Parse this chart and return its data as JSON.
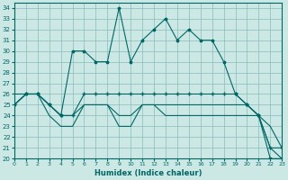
{
  "xlabel": "Humidex (Indice chaleur)",
  "background_color": "#cce8e4",
  "grid_color": "#88bbbb",
  "line_color": "#006666",
  "xlim": [
    0,
    23
  ],
  "ylim": [
    20,
    34.5
  ],
  "xticks": [
    0,
    1,
    2,
    3,
    4,
    5,
    6,
    7,
    8,
    9,
    10,
    11,
    12,
    13,
    14,
    15,
    16,
    17,
    18,
    19,
    20,
    21,
    22,
    23
  ],
  "yticks": [
    20,
    21,
    22,
    23,
    24,
    25,
    26,
    27,
    28,
    29,
    30,
    31,
    32,
    33,
    34
  ],
  "line1_x": [
    0,
    1,
    2,
    3,
    4,
    5,
    6,
    7,
    8,
    9,
    10,
    11,
    12,
    13,
    14,
    15,
    16,
    17,
    18,
    19,
    20,
    21,
    22,
    23
  ],
  "line1_y": [
    25,
    26,
    26,
    25,
    24,
    30,
    30,
    29,
    29,
    34,
    29,
    31,
    32,
    33,
    31,
    32,
    31,
    31,
    29,
    26,
    25,
    24,
    20,
    20
  ],
  "line2_x": [
    0,
    1,
    2,
    3,
    4,
    5,
    6,
    7,
    8,
    9,
    10,
    11,
    12,
    13,
    14,
    15,
    16,
    17,
    18,
    19,
    20,
    21,
    22,
    23
  ],
  "line2_y": [
    25,
    26,
    26,
    25,
    24,
    24,
    26,
    26,
    26,
    26,
    26,
    26,
    26,
    26,
    26,
    26,
    26,
    26,
    26,
    26,
    25,
    24,
    21,
    21
  ],
  "line3_x": [
    0,
    1,
    2,
    3,
    4,
    5,
    6,
    7,
    8,
    9,
    10,
    11,
    12,
    13,
    14,
    15,
    16,
    17,
    18,
    19,
    20,
    21,
    22,
    23
  ],
  "line3_y": [
    25,
    26,
    26,
    24,
    23,
    23,
    25,
    25,
    25,
    23,
    23,
    25,
    25,
    25,
    25,
    25,
    25,
    25,
    25,
    25,
    25,
    24,
    21,
    20
  ],
  "diag_x": [
    0,
    1,
    2,
    3,
    4,
    5,
    6,
    7,
    8,
    9,
    10,
    11,
    12,
    13,
    14,
    15,
    16,
    17,
    18,
    19,
    20,
    21,
    22,
    23
  ],
  "diag_y": [
    26,
    26,
    26,
    25,
    24,
    24,
    25,
    25,
    25,
    24,
    24,
    25,
    25,
    24,
    24,
    24,
    24,
    24,
    24,
    24,
    24,
    24,
    23,
    21
  ]
}
